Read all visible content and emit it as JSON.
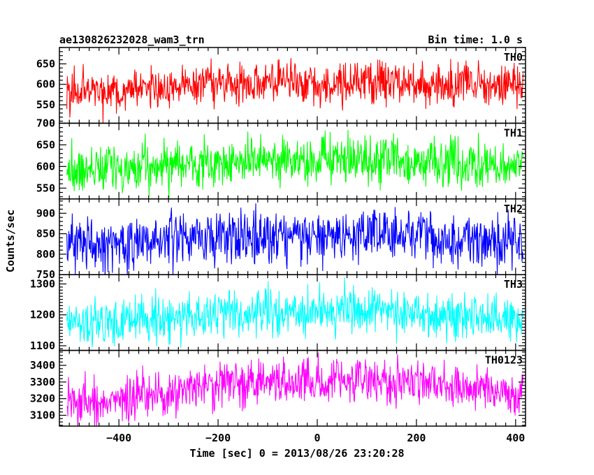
{
  "header": {
    "title": "ae130826232028_wam3_trn",
    "bin_time": "Bin time: 1.0 s"
  },
  "chart_data": {
    "type": "line",
    "title": "ae130826232028_wam3_trn",
    "xlabel": "Time [sec] 0 = 2013/08/26 23:20:28",
    "ylabel": "Counts/sec",
    "xlim": [
      -520,
      420
    ],
    "x_data_range": [
      -505,
      415
    ],
    "x_ticks": [
      -400,
      -200,
      0,
      200,
      400
    ],
    "x_tick_labels": [
      "−400",
      "−200",
      "0",
      "200",
      "400"
    ],
    "panels": [
      {
        "name": "TH0",
        "color": "#ff0000",
        "ylim": [
          505,
          690
        ],
        "yticks": [
          550,
          600,
          650
        ],
        "yminor": [
          510,
          520,
          530,
          540,
          560,
          570,
          580,
          590,
          610,
          620,
          630,
          640,
          660,
          670,
          680,
          690
        ],
        "yticklabels": [
          "550",
          "600",
          "650"
        ],
        "mean_profile": [
          [
            -505,
            583
          ],
          [
            -400,
            585
          ],
          [
            -300,
            592
          ],
          [
            -200,
            603
          ],
          [
            -100,
            603
          ],
          [
            0,
            600
          ],
          [
            100,
            606
          ],
          [
            200,
            602
          ],
          [
            300,
            598
          ],
          [
            415,
            598
          ]
        ],
        "amplitude": 38
      },
      {
        "name": "TH1",
        "color": "#00ff00",
        "ylim": [
          525,
          700
        ],
        "yticks": [
          550,
          600,
          650,
          700
        ],
        "yminor": [
          530,
          540,
          560,
          570,
          580,
          590,
          610,
          620,
          630,
          640,
          660,
          670,
          680,
          690
        ],
        "yticklabels": [
          "550",
          "600",
          "650",
          "700"
        ],
        "mean_profile": [
          [
            -505,
            592
          ],
          [
            -400,
            596
          ],
          [
            -300,
            603
          ],
          [
            -200,
            610
          ],
          [
            -100,
            612
          ],
          [
            0,
            612
          ],
          [
            100,
            612
          ],
          [
            200,
            608
          ],
          [
            300,
            602
          ],
          [
            415,
            600
          ]
        ],
        "amplitude": 38
      },
      {
        "name": "TH2",
        "color": "#0000ff",
        "ylim": [
          750,
          935
        ],
        "yticks": [
          750,
          800,
          850,
          900
        ],
        "yminor": [
          760,
          770,
          780,
          790,
          810,
          820,
          830,
          840,
          860,
          870,
          880,
          890,
          910,
          920,
          930
        ],
        "yticklabels": [
          "750",
          "800",
          "850",
          "900"
        ],
        "mean_profile": [
          [
            -505,
            825
          ],
          [
            -400,
            825
          ],
          [
            -300,
            832
          ],
          [
            -200,
            845
          ],
          [
            -100,
            848
          ],
          [
            0,
            845
          ],
          [
            100,
            848
          ],
          [
            200,
            842
          ],
          [
            300,
            835
          ],
          [
            415,
            828
          ]
        ],
        "amplitude": 45
      },
      {
        "name": "TH3",
        "color": "#00ffff",
        "ylim": [
          1085,
          1330
        ],
        "yticks": [
          1100,
          1200,
          1300
        ],
        "yminor": [
          1090,
          1110,
          1120,
          1130,
          1140,
          1150,
          1160,
          1170,
          1180,
          1190,
          1210,
          1220,
          1230,
          1240,
          1250,
          1260,
          1270,
          1280,
          1290,
          1310,
          1320,
          1330
        ],
        "yticklabels": [
          "1100",
          "1200",
          "1300"
        ],
        "mean_profile": [
          [
            -505,
            1172
          ],
          [
            -400,
            1178
          ],
          [
            -300,
            1188
          ],
          [
            -200,
            1200
          ],
          [
            -100,
            1212
          ],
          [
            0,
            1212
          ],
          [
            100,
            1215
          ],
          [
            200,
            1208
          ],
          [
            300,
            1195
          ],
          [
            415,
            1180
          ]
        ],
        "amplitude": 52
      },
      {
        "name": "TH0123",
        "color": "#ff00ff",
        "ylim": [
          3035,
          3490
        ],
        "yticks": [
          3100,
          3200,
          3300,
          3400
        ],
        "yminor": [
          3040,
          3060,
          3080,
          3120,
          3140,
          3160,
          3180,
          3220,
          3240,
          3260,
          3280,
          3320,
          3340,
          3360,
          3380,
          3420,
          3440,
          3460,
          3480
        ],
        "yticklabels": [
          "3100",
          "3200",
          "3300",
          "3400"
        ],
        "mean_profile": [
          [
            -505,
            3170
          ],
          [
            -400,
            3185
          ],
          [
            -300,
            3230
          ],
          [
            -200,
            3280
          ],
          [
            -100,
            3300
          ],
          [
            0,
            3305
          ],
          [
            100,
            3310
          ],
          [
            200,
            3300
          ],
          [
            300,
            3270
          ],
          [
            415,
            3230
          ]
        ],
        "amplitude": 95
      }
    ]
  }
}
